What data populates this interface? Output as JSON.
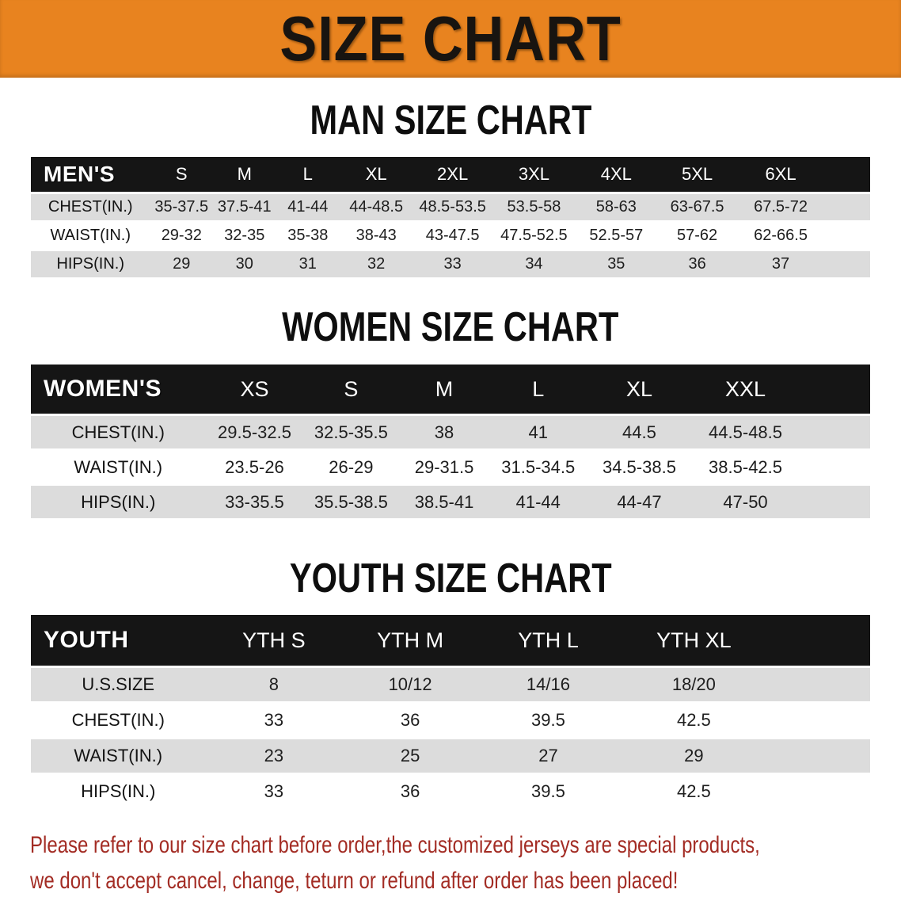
{
  "banner": {
    "title": "SIZE CHART"
  },
  "colors": {
    "banner_bg": "#E8831F",
    "table_header_bg": "#151515",
    "row_stripe": "#DCDCDC",
    "disclaimer_red": "#A32C24"
  },
  "sections": [
    {
      "id": "men",
      "heading": "MAN SIZE CHART",
      "group_label": "MEN'S",
      "columns": [
        "S",
        "M",
        "L",
        "XL",
        "2XL",
        "3XL",
        "4XL",
        "5XL",
        "6XL"
      ],
      "rows": [
        {
          "label": "CHEST(IN.)",
          "values": [
            "35-37.5",
            "37.5-41",
            "41-44",
            "44-48.5",
            "48.5-53.5",
            "53.5-58",
            "58-63",
            "63-67.5",
            "67.5-72"
          ]
        },
        {
          "label": "WAIST(IN.)",
          "values": [
            "29-32",
            "32-35",
            "35-38",
            "38-43",
            "43-47.5",
            "47.5-52.5",
            "52.5-57",
            "57-62",
            "62-66.5"
          ]
        },
        {
          "label": "HIPS(IN.)",
          "values": [
            "29",
            "30",
            "31",
            "32",
            "33",
            "34",
            "35",
            "36",
            "37"
          ]
        }
      ]
    },
    {
      "id": "women",
      "heading": "WOMEN SIZE CHART",
      "group_label": "WOMEN'S",
      "columns": [
        "XS",
        "S",
        "M",
        "L",
        "XL",
        "XXL"
      ],
      "rows": [
        {
          "label": "CHEST(IN.)",
          "values": [
            "29.5-32.5",
            "32.5-35.5",
            "38",
            "41",
            "44.5",
            "44.5-48.5"
          ]
        },
        {
          "label": "WAIST(IN.)",
          "values": [
            "23.5-26",
            "26-29",
            "29-31.5",
            "31.5-34.5",
            "34.5-38.5",
            "38.5-42.5"
          ]
        },
        {
          "label": "HIPS(IN.)",
          "values": [
            "33-35.5",
            "35.5-38.5",
            "38.5-41",
            "41-44",
            "44-47",
            "47-50"
          ]
        }
      ]
    },
    {
      "id": "youth",
      "heading": "YOUTH SIZE CHART",
      "group_label": "YOUTH",
      "columns": [
        "YTH S",
        "YTH M",
        "YTH L",
        "YTH XL"
      ],
      "rows": [
        {
          "label": "U.S.SIZE",
          "values": [
            "8",
            "10/12",
            "14/16",
            "18/20"
          ]
        },
        {
          "label": "CHEST(IN.)",
          "values": [
            "33",
            "36",
            "39.5",
            "42.5"
          ]
        },
        {
          "label": "WAIST(IN.)",
          "values": [
            "23",
            "25",
            "27",
            "29"
          ]
        },
        {
          "label": "HIPS(IN.)",
          "values": [
            "33",
            "36",
            "39.5",
            "42.5"
          ]
        }
      ]
    }
  ],
  "disclaimer": {
    "line1": "Please refer to our size chart before order,the customized jerseys are special products,",
    "line2": "we don't accept cancel, change, teturn or refund after order has been placed!"
  }
}
